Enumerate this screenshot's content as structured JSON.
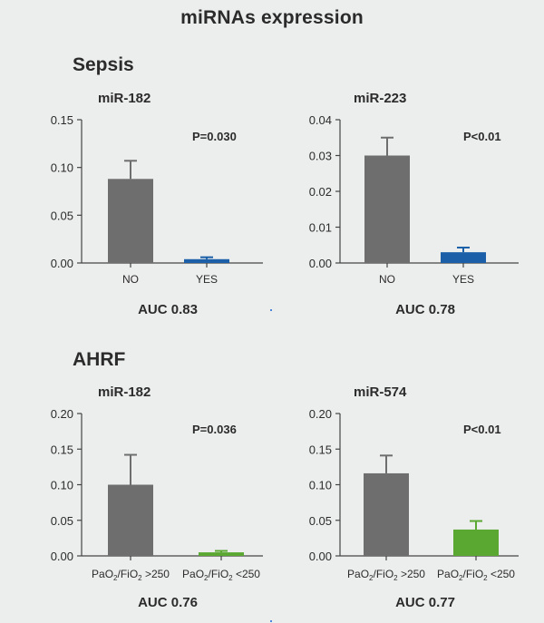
{
  "page": {
    "title": "miRNAs expression",
    "sections": [
      "Sepsis",
      "AHRF"
    ]
  },
  "colors": {
    "gray_bar": "#6e6e6e",
    "blue_bar": "#1a5fa8",
    "green_bar": "#5aa832",
    "axis": "#444444"
  },
  "chart_data": [
    {
      "type": "bar",
      "section": "Sepsis",
      "title": "miR-182",
      "categories": [
        "NO",
        "YES"
      ],
      "values": [
        0.088,
        0.004
      ],
      "errors": [
        0.019,
        0.002
      ],
      "colors": [
        "#6e6e6e",
        "#1a5fa8"
      ],
      "yticks": [
        "0.00",
        "0.05",
        "0.10",
        "0.15"
      ],
      "ylim": [
        0,
        0.15
      ],
      "pvalue": "P=0.030",
      "auc": "AUC 0.83"
    },
    {
      "type": "bar",
      "section": "Sepsis",
      "title": "miR-223",
      "categories": [
        "NO",
        "YES"
      ],
      "values": [
        0.03,
        0.003
      ],
      "errors": [
        0.005,
        0.0013
      ],
      "colors": [
        "#6e6e6e",
        "#1a5fa8"
      ],
      "yticks": [
        "0.00",
        "0.01",
        "0.02",
        "0.03",
        "0.04"
      ],
      "ylim": [
        0,
        0.04
      ],
      "pvalue": "P<0.01",
      "auc": "AUC 0.78"
    },
    {
      "type": "bar",
      "section": "AHRF",
      "title": "miR-182",
      "categories": [
        "PaO2/FiO2 >250",
        "PaO2/FiO2 <250"
      ],
      "values": [
        0.1,
        0.005
      ],
      "errors": [
        0.042,
        0.002
      ],
      "colors": [
        "#6e6e6e",
        "#5aa832"
      ],
      "yticks": [
        "0.00",
        "0.05",
        "0.10",
        "0.15",
        "0.20"
      ],
      "ylim": [
        0,
        0.2
      ],
      "pvalue": "P=0.036",
      "auc": "AUC 0.76"
    },
    {
      "type": "bar",
      "section": "AHRF",
      "title": "miR-574",
      "categories": [
        "PaO2/FiO2 >250",
        "PaO2/FiO2 <250"
      ],
      "values": [
        0.116,
        0.037
      ],
      "errors": [
        0.025,
        0.012
      ],
      "colors": [
        "#6e6e6e",
        "#5aa832"
      ],
      "yticks": [
        "0.00",
        "0.05",
        "0.10",
        "0.15",
        "0.20"
      ],
      "ylim": [
        0,
        0.2
      ],
      "pvalue": "P<0.01",
      "auc": "AUC 0.77"
    }
  ]
}
